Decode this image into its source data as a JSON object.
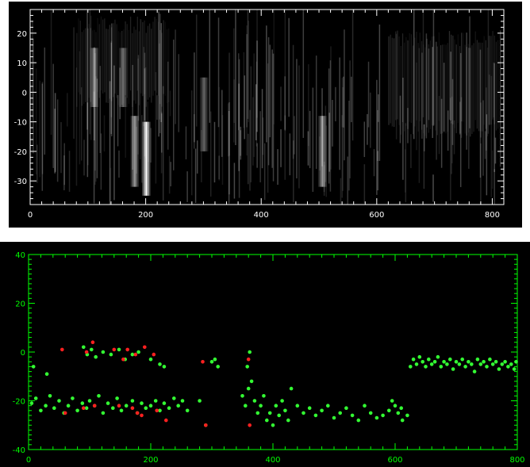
{
  "charts": {
    "top": {
      "type": "heatmap",
      "x_ticks": [
        "0",
        "200",
        "400",
        "600",
        "800"
      ],
      "y_ticks": [
        "20",
        "10",
        "0",
        "-10",
        "-20",
        "-30"
      ],
      "colors": {
        "frame": "#ffffff",
        "labels": "#ffffff",
        "background": "#000000"
      }
    },
    "bottom": {
      "type": "scatter",
      "x_ticks": [
        "0",
        "200",
        "400",
        "600",
        "800"
      ],
      "y_ticks": [
        "40",
        "20",
        "0",
        "-20",
        "-40"
      ],
      "colors": {
        "frame": "#00ff00",
        "labels": "#00ff00",
        "background": "#000000",
        "series_green": "#33ff33",
        "series_red": "#ff2020"
      }
    }
  },
  "chart_data": [
    {
      "type": "heatmap",
      "xlim": [
        0,
        820
      ],
      "ylim": [
        -38,
        28
      ],
      "x_ticks": [
        0,
        200,
        400,
        600,
        800
      ],
      "y_ticks": [
        20,
        10,
        0,
        -10,
        -20,
        -30
      ],
      "bright_features": [
        {
          "x": 200,
          "y_range": [
            -35,
            -10
          ],
          "intensity": 1.0
        },
        {
          "x": 180,
          "y_range": [
            -32,
            -8
          ],
          "intensity": 0.6
        },
        {
          "x": 505,
          "y_range": [
            -32,
            -8
          ],
          "intensity": 0.6
        },
        {
          "x": 300,
          "y_range": [
            -20,
            5
          ],
          "intensity": 0.4
        },
        {
          "x": 110,
          "y_range": [
            -5,
            15
          ],
          "intensity": 0.5
        },
        {
          "x": 160,
          "y_range": [
            -5,
            15
          ],
          "intensity": 0.4
        }
      ],
      "region_bands": [
        {
          "x_range": [
            80,
            240
          ],
          "y_range": [
            -5,
            20
          ],
          "intensity": 0.3
        },
        {
          "x_range": [
            620,
            810
          ],
          "y_range": [
            -15,
            15
          ],
          "intensity": 0.35
        }
      ]
    },
    {
      "type": "scatter",
      "xlim": [
        0,
        800
      ],
      "ylim": [
        -40,
        40
      ],
      "x_ticks": [
        0,
        200,
        400,
        600,
        800
      ],
      "y_ticks": [
        40,
        20,
        0,
        -20,
        -40
      ],
      "series": [
        {
          "color": "green",
          "points": [
            [
              5,
              -21
            ],
            [
              12,
              -19
            ],
            [
              20,
              -24
            ],
            [
              28,
              -22
            ],
            [
              35,
              -18
            ],
            [
              42,
              -23
            ],
            [
              50,
              -20
            ],
            [
              58,
              -25
            ],
            [
              65,
              -22
            ],
            [
              72,
              -19
            ],
            [
              80,
              -24
            ],
            [
              88,
              -21
            ],
            [
              95,
              -23
            ],
            [
              100,
              -20
            ],
            [
              108,
              -22
            ],
            [
              115,
              -18
            ],
            [
              122,
              -25
            ],
            [
              130,
              -21
            ],
            [
              138,
              -23
            ],
            [
              145,
              -19
            ],
            [
              152,
              -24
            ],
            [
              160,
              -22
            ],
            [
              170,
              -20
            ],
            [
              178,
              -25
            ],
            [
              185,
              -21
            ],
            [
              192,
              -23
            ],
            [
              200,
              -22
            ],
            [
              208,
              -20
            ],
            [
              215,
              -24
            ],
            [
              222,
              -21
            ],
            [
              230,
              -23
            ],
            [
              238,
              -19
            ],
            [
              245,
              -22
            ],
            [
              252,
              -20
            ],
            [
              260,
              -24
            ],
            [
              8,
              -6
            ],
            [
              30,
              -9
            ],
            [
              90,
              2
            ],
            [
              96,
              -1
            ],
            [
              103,
              1
            ],
            [
              110,
              -2
            ],
            [
              122,
              0
            ],
            [
              135,
              -1
            ],
            [
              148,
              1
            ],
            [
              158,
              -3
            ],
            [
              170,
              -1
            ],
            [
              180,
              0
            ],
            [
              200,
              -3
            ],
            [
              215,
              -5
            ],
            [
              222,
              -6
            ],
            [
              300,
              -4
            ],
            [
              310,
              -6
            ],
            [
              305,
              -3
            ],
            [
              280,
              -20
            ],
            [
              290,
              -30
            ],
            [
              350,
              -18
            ],
            [
              355,
              -22
            ],
            [
              360,
              -15
            ],
            [
              362,
              0
            ],
            [
              358,
              -6
            ],
            [
              365,
              -12
            ],
            [
              370,
              -20
            ],
            [
              375,
              -25
            ],
            [
              380,
              -22
            ],
            [
              385,
              -18
            ],
            [
              390,
              -28
            ],
            [
              395,
              -25
            ],
            [
              400,
              -30
            ],
            [
              405,
              -22
            ],
            [
              410,
              -26
            ],
            [
              415,
              -20
            ],
            [
              420,
              -24
            ],
            [
              425,
              -28
            ],
            [
              430,
              -15
            ],
            [
              440,
              -22
            ],
            [
              450,
              -25
            ],
            [
              460,
              -23
            ],
            [
              470,
              -26
            ],
            [
              480,
              -24
            ],
            [
              490,
              -22
            ],
            [
              500,
              -27
            ],
            [
              510,
              -25
            ],
            [
              520,
              -23
            ],
            [
              530,
              -26
            ],
            [
              540,
              -28
            ],
            [
              550,
              -22
            ],
            [
              560,
              -25
            ],
            [
              570,
              -27
            ],
            [
              580,
              -26
            ],
            [
              590,
              -24
            ],
            [
              595,
              -20
            ],
            [
              600,
              -22
            ],
            [
              605,
              -25
            ],
            [
              610,
              -23
            ],
            [
              612,
              -28
            ],
            [
              620,
              -26
            ],
            [
              625,
              -6
            ],
            [
              630,
              -3
            ],
            [
              635,
              -5
            ],
            [
              640,
              -2
            ],
            [
              645,
              -4
            ],
            [
              650,
              -6
            ],
            [
              655,
              -3
            ],
            [
              660,
              -5
            ],
            [
              665,
              -4
            ],
            [
              670,
              -2
            ],
            [
              675,
              -6
            ],
            [
              680,
              -4
            ],
            [
              685,
              -5
            ],
            [
              690,
              -3
            ],
            [
              695,
              -7
            ],
            [
              700,
              -4
            ],
            [
              705,
              -5
            ],
            [
              710,
              -3
            ],
            [
              715,
              -6
            ],
            [
              720,
              -4
            ],
            [
              725,
              -5
            ],
            [
              730,
              -8
            ],
            [
              735,
              -3
            ],
            [
              740,
              -5
            ],
            [
              745,
              -4
            ],
            [
              750,
              -6
            ],
            [
              755,
              -3
            ],
            [
              760,
              -5
            ],
            [
              765,
              -4
            ],
            [
              770,
              -7
            ],
            [
              775,
              -5
            ],
            [
              780,
              -4
            ],
            [
              785,
              -6
            ],
            [
              790,
              -5
            ],
            [
              795,
              -7
            ],
            [
              798,
              -4
            ]
          ]
        },
        {
          "color": "red",
          "points": [
            [
              55,
              1
            ],
            [
              60,
              -25
            ],
            [
              90,
              -23
            ],
            [
              95,
              0
            ],
            [
              105,
              4
            ],
            [
              108,
              -22
            ],
            [
              140,
              1
            ],
            [
              148,
              -22
            ],
            [
              155,
              -3
            ],
            [
              162,
              1
            ],
            [
              170,
              -23
            ],
            [
              175,
              -1
            ],
            [
              178,
              -25
            ],
            [
              185,
              -26
            ],
            [
              190,
              2
            ],
            [
              205,
              -1
            ],
            [
              210,
              -24
            ],
            [
              225,
              -28
            ],
            [
              285,
              -4
            ],
            [
              290,
              -30
            ],
            [
              360,
              -3
            ],
            [
              362,
              -30
            ]
          ]
        }
      ]
    }
  ]
}
